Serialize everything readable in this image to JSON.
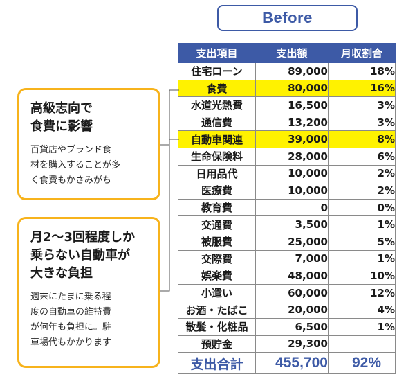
{
  "header": {
    "label": "Before"
  },
  "table": {
    "columns": [
      "支出項目",
      "支出額",
      "月収割合"
    ],
    "rows": [
      {
        "name": "住宅ローン",
        "amount": "89,000",
        "pct": "18%",
        "highlight": false
      },
      {
        "name": "食費",
        "amount": "80,000",
        "pct": "16%",
        "highlight": true
      },
      {
        "name": "水道光熱費",
        "amount": "16,500",
        "pct": "3%",
        "highlight": false
      },
      {
        "name": "通信費",
        "amount": "13,200",
        "pct": "3%",
        "highlight": false
      },
      {
        "name": "自動車関連",
        "amount": "39,000",
        "pct": "8%",
        "highlight": true
      },
      {
        "name": "生命保険料",
        "amount": "28,000",
        "pct": "6%",
        "highlight": false
      },
      {
        "name": "日用品代",
        "amount": "10,000",
        "pct": "2%",
        "highlight": false
      },
      {
        "name": "医療費",
        "amount": "10,000",
        "pct": "2%",
        "highlight": false
      },
      {
        "name": "教育費",
        "amount": "0",
        "pct": "0%",
        "highlight": false
      },
      {
        "name": "交通費",
        "amount": "3,500",
        "pct": "1%",
        "highlight": false
      },
      {
        "name": "被服費",
        "amount": "25,000",
        "pct": "5%",
        "highlight": false
      },
      {
        "name": "交際費",
        "amount": "7,000",
        "pct": "1%",
        "highlight": false
      },
      {
        "name": "娯楽費",
        "amount": "48,000",
        "pct": "10%",
        "highlight": false
      },
      {
        "name": "小遣い",
        "amount": "60,000",
        "pct": "12%",
        "highlight": false
      },
      {
        "name": "お酒・たばこ",
        "amount": "20,000",
        "pct": "4%",
        "highlight": false
      },
      {
        "name": "散髪・化粧品",
        "amount": "6,500",
        "pct": "1%",
        "highlight": false
      },
      {
        "name": "預貯金",
        "amount": "29,300",
        "pct": "",
        "highlight": false
      }
    ],
    "total": {
      "name": "支出合計",
      "amount": "455,700",
      "pct": "92%"
    }
  },
  "callouts": [
    {
      "title_lines": [
        "高級志向で",
        "食費に影響"
      ],
      "body_lines": [
        "百貨店やブランド食",
        "材を購入することが多",
        "く食費もかさみがち"
      ]
    },
    {
      "title_lines": [
        "月2〜3回程度しか",
        "乗らない自動車が",
        "大きな負担"
      ],
      "body_lines": [
        "週末にたまに乗る程",
        "度の自動車の維持費",
        "が何年も負担に。駐",
        "車場代もかかります"
      ]
    }
  ],
  "colors": {
    "accent_blue": "#3d5aa6",
    "highlight_yellow": "#fff200",
    "callout_border": "#f7b31c"
  }
}
